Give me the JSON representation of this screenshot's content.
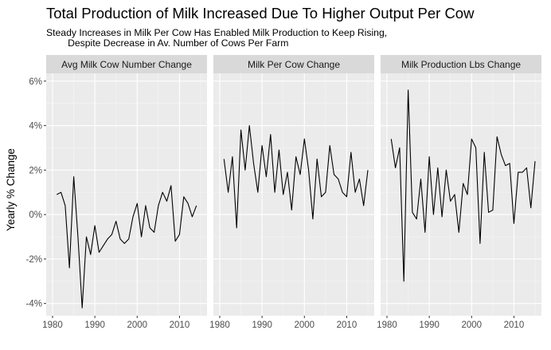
{
  "title": "Total Production of Milk Increased Due To Higher Output Per Cow",
  "subtitle": "Steady Increases in Milk Per Cow Has Enabled Milk Production to Keep Rising,\n        Despite Decrease in Av. Number of Cows Per Farm",
  "chart_data": {
    "type": "line",
    "ylabel": "Yearly % Change",
    "xlabel": "",
    "xlim": [
      1978.5,
      2016.5
    ],
    "ylim": [
      -4.55,
      6.35
    ],
    "x_ticks": [
      1980,
      1990,
      2000,
      2010
    ],
    "y_ticks": [
      -4,
      -2,
      0,
      2,
      4,
      6
    ],
    "y_tick_labels": [
      "-4%",
      "-2%",
      "0%",
      "2%",
      "4%",
      "6%"
    ],
    "grid": true,
    "colors": {
      "panel_bg": "#ebebeb",
      "strip_bg": "#d9d9d9",
      "grid_major": "#ffffff",
      "grid_minor": "#f5f5f5",
      "line": "#000000"
    },
    "x": [
      1981,
      1982,
      1983,
      1984,
      1985,
      1986,
      1987,
      1988,
      1989,
      1990,
      1991,
      1992,
      1993,
      1994,
      1995,
      1996,
      1997,
      1998,
      1999,
      2000,
      2001,
      2002,
      2003,
      2004,
      2005,
      2006,
      2007,
      2008,
      2009,
      2010,
      2011,
      2012,
      2013,
      2014,
      2015
    ],
    "panels": [
      {
        "label": "Avg Milk Cow Number Change",
        "values": [
          0.9,
          1.0,
          0.4,
          -2.4,
          1.7,
          -1.0,
          -4.2,
          -1.0,
          -1.8,
          -0.5,
          -1.7,
          -1.4,
          -1.1,
          -0.9,
          -0.3,
          -1.1,
          -1.3,
          -1.1,
          -0.1,
          0.5,
          -1.0,
          0.4,
          -0.6,
          -0.8,
          0.4,
          1.0,
          0.6,
          1.3,
          -1.2,
          -0.9,
          0.8,
          0.5,
          -0.1,
          0.4,
          null
        ]
      },
      {
        "label": "Milk Per Cow Change",
        "values": [
          2.5,
          1.0,
          2.6,
          -0.6,
          3.8,
          2.0,
          4.0,
          2.3,
          1.0,
          3.1,
          1.7,
          3.6,
          1.0,
          2.9,
          0.9,
          1.9,
          0.2,
          2.6,
          1.8,
          3.4,
          2.0,
          -0.2,
          2.5,
          0.8,
          1.0,
          3.1,
          1.8,
          1.6,
          1.0,
          0.8,
          2.8,
          1.0,
          1.6,
          0.4,
          2.0
        ]
      },
      {
        "label": "Milk Production Lbs Change",
        "values": [
          3.4,
          2.1,
          3.0,
          -3.0,
          5.6,
          0.1,
          -0.2,
          1.6,
          -0.8,
          2.6,
          0.0,
          2.1,
          -0.1,
          2.0,
          0.6,
          0.9,
          -0.8,
          1.4,
          0.9,
          3.4,
          3.0,
          -1.3,
          2.8,
          0.1,
          0.2,
          3.5,
          2.7,
          2.2,
          2.3,
          -0.4,
          1.9,
          1.9,
          2.1,
          0.3,
          2.4
        ]
      }
    ]
  }
}
